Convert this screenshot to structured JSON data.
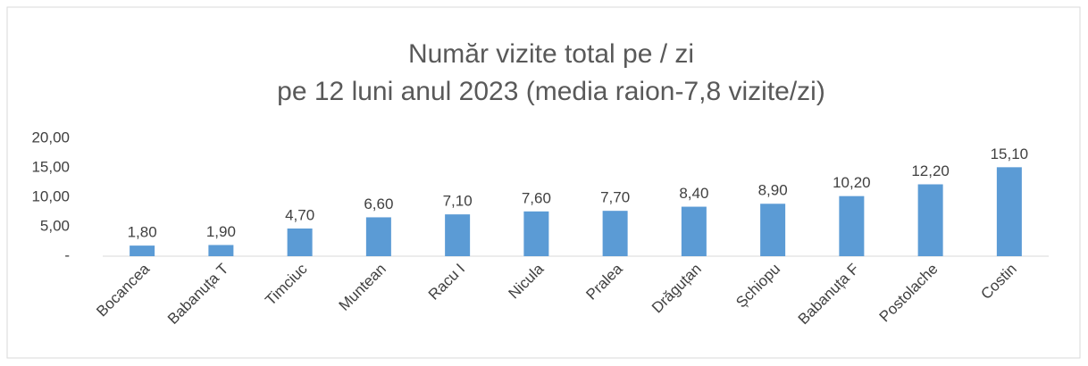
{
  "chart_data": {
    "type": "bar",
    "title": "Număr vizite total pe / zi",
    "subtitle": "pe 12 luni anul 2023 (media raion-7,8 vizite/zi)",
    "categories": [
      "Bocancea",
      "Babanuța T",
      "Timciuc",
      "Muntean",
      "Racu I",
      "Nicula",
      "Pralea",
      "Drăguțan",
      "Șchiopu",
      "Babanuța F",
      "Postolache",
      "Costin"
    ],
    "values": [
      1.8,
      1.9,
      4.7,
      6.6,
      7.1,
      7.6,
      7.7,
      8.4,
      8.9,
      10.2,
      12.2,
      15.1
    ],
    "value_labels": [
      "1,80",
      "1,90",
      "4,70",
      "6,60",
      "7,10",
      "7,60",
      "7,70",
      "8,40",
      "8,90",
      "10,20",
      "12,20",
      "15,10"
    ],
    "color": "#5b9bd5",
    "ylim": [
      0,
      20
    ],
    "yticks": [
      {
        "value": 0,
        "label": "-"
      },
      {
        "value": 5,
        "label": "5,00"
      },
      {
        "value": 10,
        "label": "10,00"
      },
      {
        "value": 15,
        "label": "15,00"
      },
      {
        "value": 20,
        "label": "20,00"
      }
    ],
    "grid": false
  }
}
